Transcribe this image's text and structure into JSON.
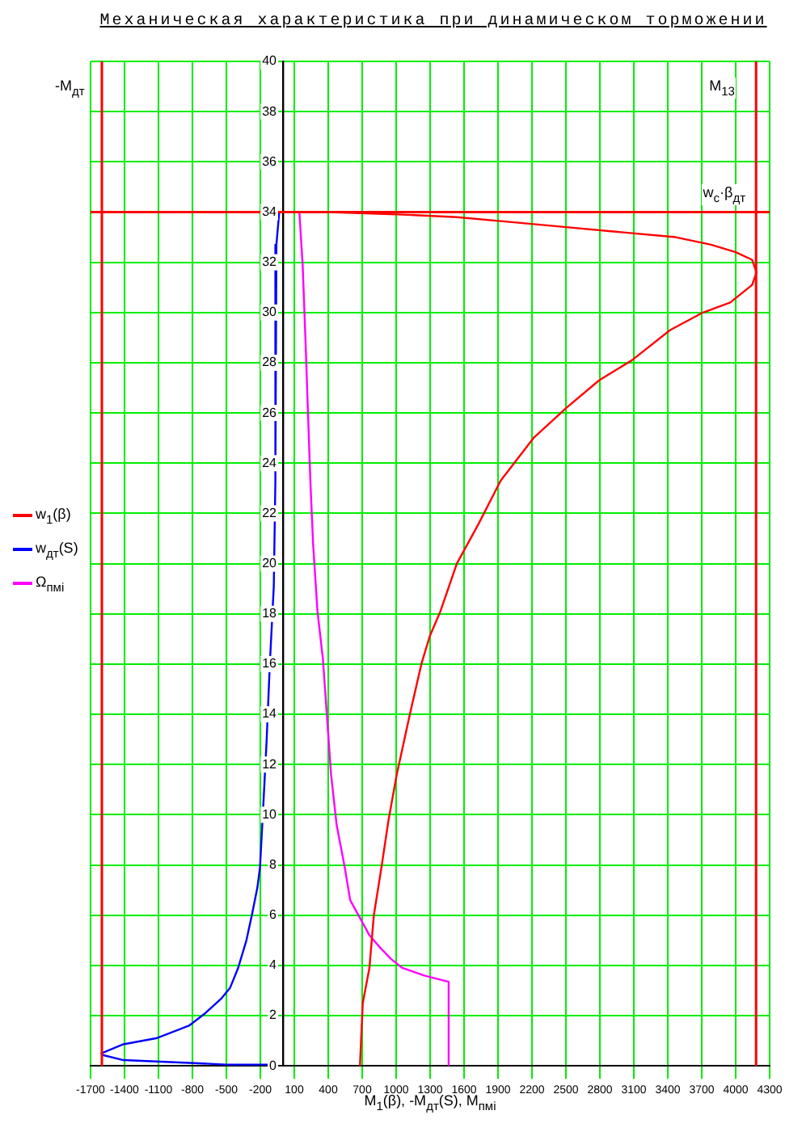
{
  "chart_data": {
    "type": "line",
    "title": "Механическая характеристика при динамическом торможении",
    "xlabel": "M$_{1}$(β), -M$_{дт}$(S), M$_{пмi}$",
    "series": [
      {
        "name": "w$_{1}$(β)",
        "color": "#ff0000",
        "x": [
          680,
          705,
          764,
          803,
          870,
          933,
          1005,
          1126,
          1223,
          1296,
          1391,
          1536,
          1730,
          1923,
          2213,
          2503,
          2793,
          3083,
          3421,
          3711,
          3952,
          4145,
          4184,
          4145,
          4000,
          3783,
          3470,
          2986,
          2503,
          2020,
          1536,
          1054,
          400
        ],
        "values": [
          0,
          2.5,
          3.9,
          6.0,
          7.9,
          9.8,
          11.6,
          14.1,
          16.0,
          17.1,
          18.1,
          20.0,
          21.6,
          23.3,
          25.0,
          26.2,
          27.3,
          28.1,
          29.3,
          30.0,
          30.4,
          31.1,
          31.6,
          32.1,
          32.4,
          32.7,
          33.0,
          33.2,
          33.4,
          33.6,
          33.8,
          33.9,
          34.0
        ]
      },
      {
        "name": "w$_{дт}$(S)",
        "color": "#0000ff",
        "x": [
          -33,
          -58,
          -67,
          -81,
          -116,
          -145,
          -178,
          -203,
          -226,
          -275,
          -323,
          -396,
          -468,
          -541,
          -686,
          -830,
          -1120,
          -1410,
          -1603,
          -1600,
          -1410,
          -830,
          -500,
          -135
        ],
        "values": [
          34.0,
          32.7,
          23.3,
          19.1,
          16.0,
          12.9,
          10.0,
          7.9,
          7.1,
          6.0,
          5.0,
          3.9,
          3.1,
          2.7,
          2.1,
          1.6,
          1.1,
          0.86,
          0.5,
          0.44,
          0.23,
          0.12,
          0.05,
          0.05
        ]
      },
      {
        "name": "Ω$_{пмi}$",
        "color": "#ff00ff",
        "x": [
          1464,
          1464,
          1247,
          1054,
          957,
          860,
          764,
          691,
          594,
          546,
          474,
          425,
          392,
          353,
          305,
          266,
          242,
          218,
          199,
          174,
          145
        ],
        "values": [
          0,
          3.35,
          3.6,
          3.9,
          4.25,
          4.7,
          5.2,
          5.8,
          6.6,
          7.9,
          9.6,
          11.6,
          13.7,
          16.2,
          18.1,
          20.8,
          23.3,
          26.4,
          28.9,
          31.9,
          34.0
        ]
      }
    ],
    "xlim": [
      -1700,
      4300
    ],
    "xticks": [
      -1700,
      -1400,
      -1100,
      -800,
      -500,
      -200,
      100,
      400,
      700,
      1000,
      1300,
      1600,
      1900,
      2200,
      2500,
      2800,
      3100,
      3400,
      3700,
      4000,
      4300
    ],
    "ylim": [
      0,
      40
    ],
    "yticks": [
      0,
      2,
      4,
      6,
      8,
      10,
      12,
      14,
      16,
      18,
      20,
      22,
      24,
      26,
      28,
      30,
      32,
      34,
      36,
      38,
      40
    ],
    "grid": true,
    "legend": "left",
    "ref_lines": [
      {
        "axis": "x",
        "value": -1600,
        "label": "-M$_{дт}$",
        "color": "#ff0000"
      },
      {
        "axis": "x",
        "value": 4180,
        "label": "M$_{13}$",
        "color": "#ff0000"
      },
      {
        "axis": "y",
        "value": 34,
        "label": "w$_{c}$·β$_{дт}$",
        "color": "#ff0000"
      }
    ]
  }
}
